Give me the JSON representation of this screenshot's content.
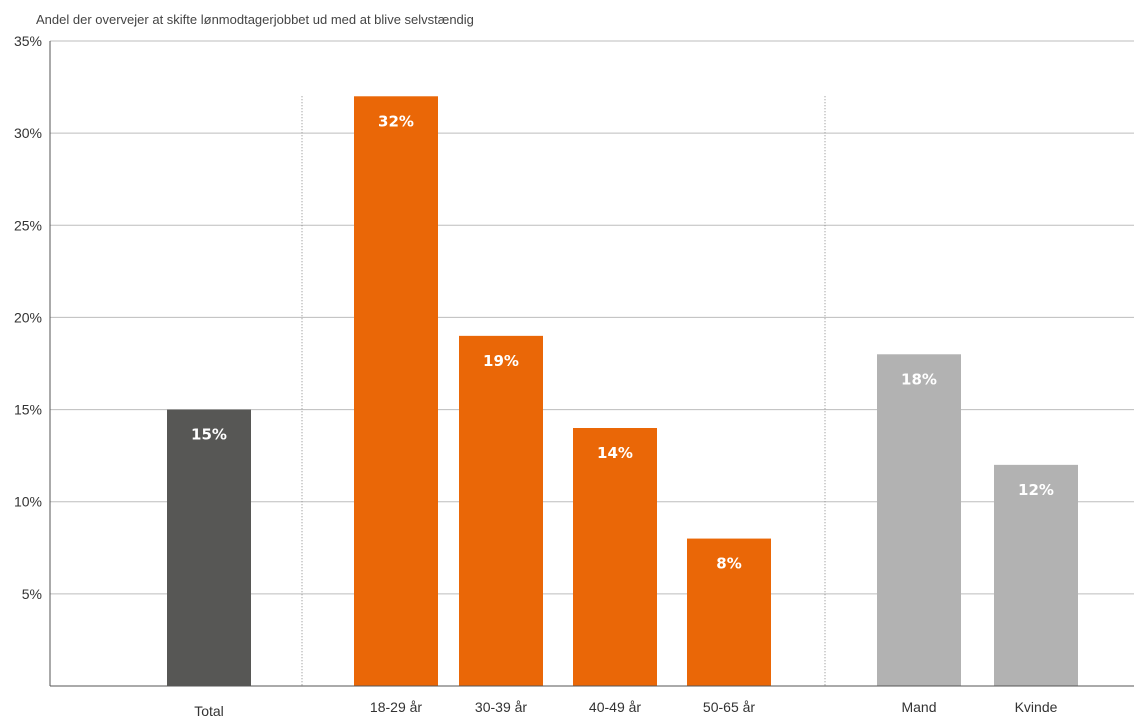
{
  "chart_data": {
    "type": "bar",
    "title": "Andel der overvejer at skifte lønmodtagerjobbet ud med at blive selvstændig",
    "xlabel": "",
    "ylabel": "",
    "ylim": [
      0,
      35
    ],
    "yticks": [
      5,
      10,
      15,
      20,
      25,
      30,
      35
    ],
    "ytick_labels": [
      "5%",
      "10%",
      "15%",
      "20%",
      "25%",
      "30%",
      "35%"
    ],
    "grid": true,
    "legend": "none",
    "categories": [
      "Total",
      "18-29 år",
      "30-39 år",
      "40-49 år",
      "50-65 år",
      "Mand",
      "Kvinde"
    ],
    "values": [
      15,
      32,
      19,
      14,
      8,
      18,
      12
    ],
    "data_labels": [
      "15%",
      "32%",
      "19%",
      "14%",
      "8%",
      "18%",
      "12%"
    ],
    "groups": [
      "total",
      "age",
      "age",
      "age",
      "age",
      "gender",
      "gender"
    ],
    "colors": {
      "total": "#575755",
      "age": "#ea6707",
      "gender": "#b2b2b2",
      "grid": "#bdbdbd",
      "axis": "#555555",
      "separator": "#888888"
    }
  }
}
